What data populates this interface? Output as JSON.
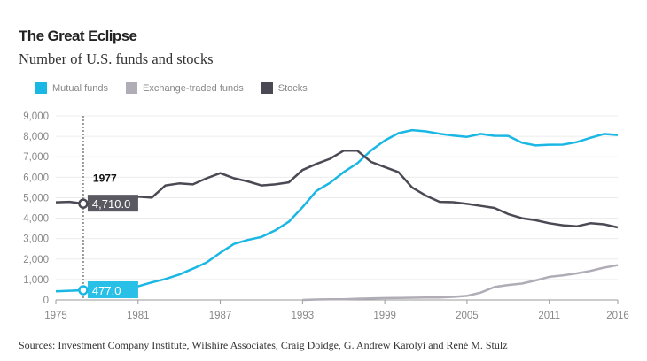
{
  "title": "The Great Eclipse",
  "subtitle": "Number of U.S. funds and stocks",
  "source": "Sources: Investment Company Institute, Wilshire Associates, Craig Doidge, G. Andrew Karolyi and René M. Stulz",
  "chart_data": {
    "type": "line",
    "title": "The Great Eclipse",
    "subtitle": "Number of U.S. funds and stocks",
    "xlim": [
      1975,
      2016
    ],
    "ylim": [
      0,
      9000
    ],
    "x_ticks": [
      "1975",
      "1981",
      "1987",
      "1993",
      "1999",
      "2005",
      "2011",
      "2016"
    ],
    "y_ticks": [
      "0",
      "1,000",
      "2,000",
      "3,000",
      "4,000",
      "5,000",
      "6,000",
      "7,000",
      "8,000",
      "9,000"
    ],
    "grid": "horizontal",
    "legend_placement": "top-left",
    "x": [
      1975,
      1976,
      1977,
      1978,
      1979,
      1980,
      1981,
      1982,
      1983,
      1984,
      1985,
      1986,
      1987,
      1988,
      1989,
      1990,
      1991,
      1992,
      1993,
      1994,
      1995,
      1996,
      1997,
      1998,
      1999,
      2000,
      2001,
      2002,
      2003,
      2004,
      2005,
      2006,
      2007,
      2008,
      2009,
      2010,
      2011,
      2012,
      2013,
      2014,
      2015,
      2016
    ],
    "series": [
      {
        "name": "Mutual funds",
        "color": "#1ab7e5",
        "values": [
          426,
          452,
          477,
          505,
          525,
          564,
          665,
          857,
          1026,
          1241,
          1527,
          1835,
          2312,
          2737,
          2935,
          3079,
          3403,
          3824,
          4534,
          5325,
          5725,
          6248,
          6684,
          7314,
          7791,
          8155,
          8305,
          8243,
          8125,
          8041,
          7975,
          8118,
          8026,
          8022,
          7691,
          7555,
          7591,
          7592,
          7714,
          7927,
          8116,
          8066
        ]
      },
      {
        "name": "Exchange-traded funds",
        "color": "#b0adb6",
        "values": [
          null,
          null,
          null,
          null,
          null,
          null,
          null,
          null,
          null,
          null,
          null,
          null,
          null,
          null,
          null,
          null,
          null,
          null,
          1,
          20,
          30,
          35,
          60,
          80,
          90,
          100,
          110,
          115,
          120,
          150,
          200,
          360,
          630,
          730,
          800,
          950,
          1130,
          1200,
          1300,
          1420,
          1580,
          1700
        ]
      },
      {
        "name": "Stocks",
        "color": "#4a4954",
        "values": [
          4775,
          4800,
          4710,
          4750,
          4900,
          5000,
          5050,
          5000,
          5600,
          5700,
          5650,
          5950,
          6200,
          5950,
          5800,
          5600,
          5650,
          5750,
          6350,
          6650,
          6900,
          7300,
          7300,
          6750,
          6500,
          6250,
          5500,
          5100,
          4800,
          4780,
          4700,
          4600,
          4500,
          4200,
          4000,
          3900,
          3750,
          3650,
          3600,
          3750,
          3700,
          3550
        ]
      }
    ],
    "tooltip": {
      "year": "1977",
      "values": [
        "4,710.0",
        "477.0"
      ]
    }
  }
}
